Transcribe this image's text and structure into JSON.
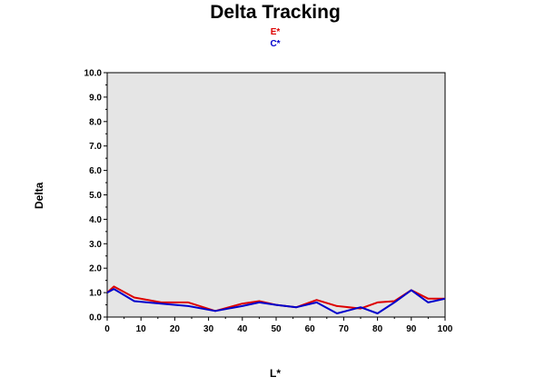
{
  "chart_data": {
    "type": "line",
    "title": "Delta Tracking",
    "xlabel": "L*",
    "ylabel": "Delta",
    "xlim": [
      0,
      100
    ],
    "ylim": [
      0,
      10
    ],
    "x_ticks": [
      0,
      10,
      20,
      30,
      40,
      50,
      60,
      70,
      80,
      90,
      100
    ],
    "y_ticks": [
      "0.0",
      "1.0",
      "2.0",
      "3.0",
      "4.0",
      "5.0",
      "6.0",
      "7.0",
      "8.0",
      "9.0",
      "10.0"
    ],
    "grid": false,
    "legend_position": "top-center",
    "background_color": "#e5e5e5",
    "series": [
      {
        "name": "E*",
        "color": "#dd0000",
        "x": [
          0,
          2,
          8,
          16,
          24,
          32,
          40,
          45,
          50,
          56,
          62,
          68,
          75,
          80,
          85,
          90,
          95,
          100
        ],
        "y": [
          1.0,
          1.25,
          0.8,
          0.6,
          0.6,
          0.25,
          0.55,
          0.65,
          0.5,
          0.4,
          0.7,
          0.45,
          0.35,
          0.6,
          0.65,
          1.1,
          0.75,
          0.75
        ]
      },
      {
        "name": "C*",
        "color": "#0000cc",
        "x": [
          0,
          2,
          8,
          16,
          24,
          32,
          40,
          45,
          50,
          56,
          62,
          68,
          75,
          80,
          85,
          90,
          95,
          100
        ],
        "y": [
          1.0,
          1.15,
          0.65,
          0.55,
          0.45,
          0.25,
          0.45,
          0.6,
          0.5,
          0.4,
          0.6,
          0.15,
          0.4,
          0.15,
          0.6,
          1.1,
          0.6,
          0.75
        ]
      }
    ]
  }
}
